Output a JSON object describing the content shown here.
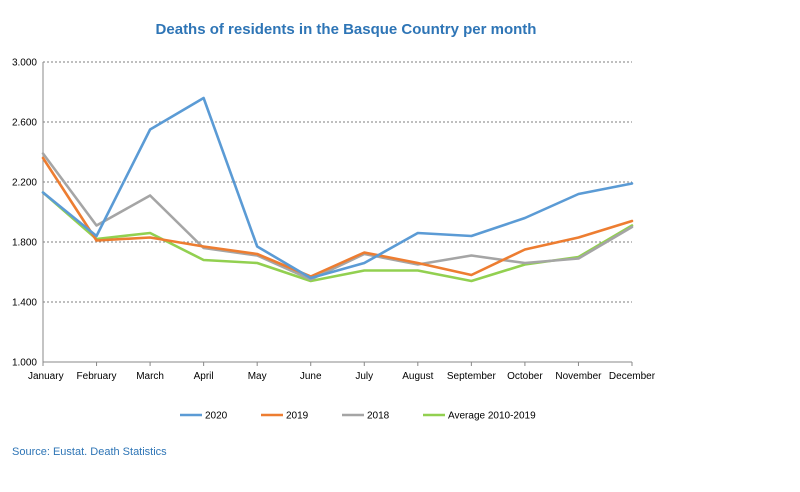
{
  "chart_data": {
    "type": "line",
    "title": "Deaths of residents in the Basque Country per month",
    "xlabel": "",
    "ylabel": "",
    "categories": [
      "January",
      "February",
      "March",
      "April",
      "May",
      "June",
      "July",
      "August",
      "September",
      "October",
      "November",
      "December"
    ],
    "ylim": [
      1000,
      3000
    ],
    "yticks": [
      1000,
      1400,
      1800,
      2200,
      2600,
      3000
    ],
    "ytick_labels": [
      "1.000",
      "1.400",
      "1.800",
      "2.200",
      "2.600",
      "3.000"
    ],
    "grid": "horizontal dotted",
    "legend_position": "bottom",
    "series": [
      {
        "name": "2020",
        "color": "#5B9BD5",
        "values": [
          2130,
          1840,
          2550,
          2760,
          1770,
          1560,
          1660,
          1860,
          1840,
          1960,
          2120,
          2190
        ]
      },
      {
        "name": "2019",
        "color": "#ED7D31",
        "values": [
          2360,
          1810,
          1830,
          1770,
          1720,
          1570,
          1730,
          1660,
          1580,
          1750,
          1830,
          1940
        ]
      },
      {
        "name": "2018",
        "color": "#A5A5A5",
        "values": [
          2390,
          1910,
          2110,
          1760,
          1710,
          1550,
          1720,
          1650,
          1710,
          1660,
          1690,
          1900
        ]
      },
      {
        "name": "Average 2010-2019",
        "color": "#92D050",
        "values": [
          2130,
          1820,
          1860,
          1680,
          1660,
          1540,
          1610,
          1610,
          1540,
          1650,
          1700,
          1910
        ]
      }
    ]
  },
  "source": "Source: Eustat. Death Statistics"
}
